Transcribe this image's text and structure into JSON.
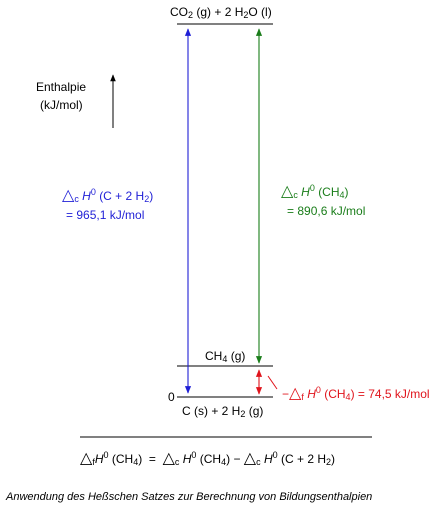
{
  "levels": {
    "top": {
      "text": "CO",
      "sub1": "2",
      "mid": " (g)  + 2 H",
      "sub2": "2",
      "end": "O (l)"
    },
    "ch4": {
      "text": "CH",
      "sub": "4",
      "end": " (g)"
    },
    "bottom": {
      "zero": "0",
      "text": "C (s)  + 2 H",
      "sub": "2",
      "end": " (g)"
    }
  },
  "axis": {
    "line1": "Enthalpie",
    "line2": "(kJ/mol)"
  },
  "blue_label": {
    "symbol": "△",
    "sub": "c",
    "h": "H",
    "sup": "0",
    "species": "(C  + 2 H",
    "species_sub": "2",
    "species_end": ")",
    "value": "= 965,1  kJ/mol"
  },
  "green_label": {
    "symbol": "△",
    "sub": "c",
    "h": "H",
    "sup": "0",
    "species": "(CH",
    "species_sub": "4",
    "species_end": ")",
    "value": "= 890,6  kJ/mol"
  },
  "red_label": {
    "minus": "−",
    "symbol": "△",
    "sub": "f",
    "h": "H",
    "sup": "0",
    "species": "(CH",
    "species_sub": "4",
    "species_end": ") = 74,5 kJ/mol"
  },
  "equation": {
    "d1": "△",
    "s1": "f",
    "h1": "H",
    "p1": "0",
    "c1": "(CH",
    "c1s": "4",
    "c1e": ")",
    "eq": "=",
    "d2": "△",
    "s2": "c",
    "h2": "H",
    "p2": "0",
    "c2": "(CH",
    "c2s": "4",
    "c2e": ")",
    "minus": "−",
    "d3": "△",
    "s3": "c",
    "h3": "H",
    "p3": "0",
    "c3": "(C  + 2 H",
    "c3s": "2",
    "c3e": ")"
  },
  "caption": "Anwendung des Heßschen Satzes zur Berechnung von Bildungsenthalpien",
  "colors": {
    "blue": "#1f1fd6",
    "green": "#1a7d1a",
    "red": "#e0141c",
    "black": "#000000"
  }
}
